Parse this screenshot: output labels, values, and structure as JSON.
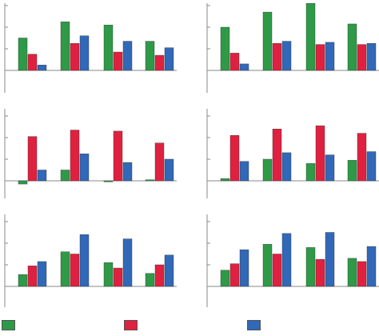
{
  "colors": {
    "green": "#2e9a47",
    "red": "#e0203f",
    "blue": "#3168b8",
    "axis": "#888888"
  },
  "chart_data": [
    {
      "type": "bar",
      "categories": [
        "",
        "",
        "",
        ""
      ],
      "ylim": [
        0,
        3
      ],
      "grid": false,
      "legend": "none",
      "series": [
        {
          "values": [
            1.5,
            2.25,
            2.1,
            1.35
          ]
        },
        {
          "values": [
            0.75,
            1.25,
            0.85,
            0.7
          ]
        },
        {
          "values": [
            0.25,
            1.6,
            1.35,
            1.05
          ]
        }
      ]
    },
    {
      "type": "bar",
      "categories": [
        "",
        "",
        "",
        ""
      ],
      "ylim": [
        0,
        3
      ],
      "grid": false,
      "legend": "none",
      "series": [
        {
          "values": [
            2.0,
            2.7,
            3.1,
            2.15
          ]
        },
        {
          "values": [
            0.8,
            1.25,
            1.2,
            1.2
          ]
        },
        {
          "values": [
            0.3,
            1.35,
            1.3,
            1.25
          ]
        }
      ]
    },
    {
      "type": "bar",
      "categories": [
        "",
        "",
        "",
        ""
      ],
      "ylim": [
        -0.5,
        3
      ],
      "grid": false,
      "legend": "none",
      "series": [
        {
          "values": [
            -0.15,
            0.5,
            -0.05,
            0.05
          ]
        },
        {
          "values": [
            2.05,
            2.35,
            2.3,
            1.75
          ]
        },
        {
          "values": [
            0.5,
            1.25,
            0.85,
            1.0
          ]
        }
      ]
    },
    {
      "type": "bar",
      "categories": [
        "",
        "",
        "",
        ""
      ],
      "ylim": [
        -0.5,
        3
      ],
      "grid": false,
      "legend": "none",
      "series": [
        {
          "values": [
            0.1,
            1.0,
            0.8,
            0.95
          ]
        },
        {
          "values": [
            2.1,
            2.4,
            2.55,
            2.2
          ]
        },
        {
          "values": [
            0.9,
            1.3,
            1.2,
            1.35
          ]
        }
      ]
    },
    {
      "type": "bar",
      "categories": [
        "",
        "",
        "",
        ""
      ],
      "ylim": [
        0,
        3
      ],
      "grid": false,
      "legend": "none",
      "series": [
        {
          "values": [
            0.55,
            1.6,
            1.1,
            0.6
          ]
        },
        {
          "values": [
            0.95,
            1.5,
            0.85,
            1.0
          ]
        },
        {
          "values": [
            1.15,
            2.4,
            2.2,
            1.45
          ]
        }
      ]
    },
    {
      "type": "bar",
      "categories": [
        "",
        "",
        "",
        ""
      ],
      "ylim": [
        0,
        3
      ],
      "grid": false,
      "legend": "none",
      "series": [
        {
          "values": [
            0.75,
            1.95,
            1.8,
            1.3
          ]
        },
        {
          "values": [
            1.05,
            1.5,
            1.25,
            1.15
          ]
        },
        {
          "values": [
            1.7,
            2.45,
            2.5,
            1.85
          ]
        }
      ]
    }
  ],
  "legend": {
    "placement": "bottom",
    "items": [
      {
        "color": "#2e9a47"
      },
      {
        "color": "#e0203f"
      },
      {
        "color": "#3168b8"
      }
    ]
  }
}
